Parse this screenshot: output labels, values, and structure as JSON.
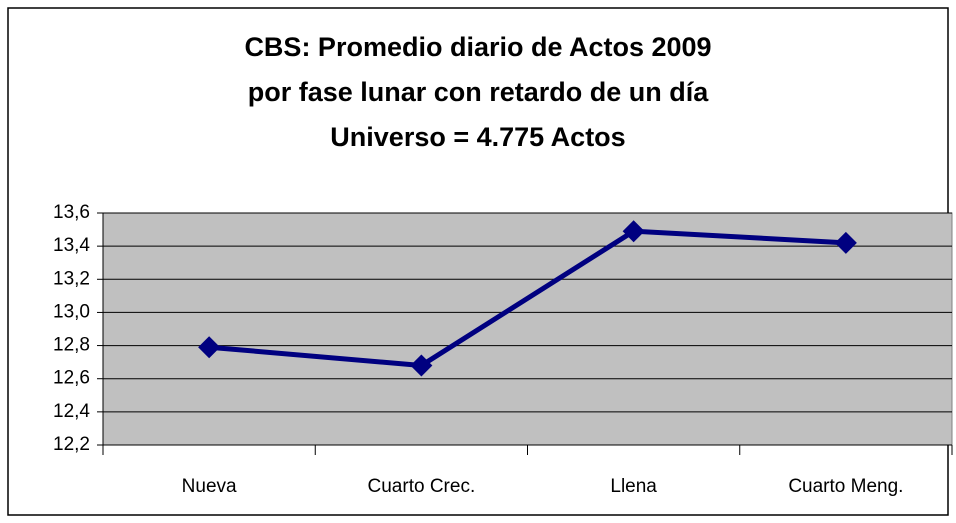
{
  "chart_data": {
    "type": "line",
    "title": [
      "CBS: Promedio diario de Actos 2009",
      "por fase lunar con retardo de un día",
      "Universo = 4.775 Actos"
    ],
    "categories": [
      "Nueva",
      "Cuarto Crec.",
      "Llena",
      "Cuarto Meng."
    ],
    "series": [
      {
        "name": "Promedio",
        "color": "#000080",
        "values": [
          12.79,
          12.68,
          13.49,
          13.42
        ]
      }
    ],
    "ylim": [
      12.2,
      13.6
    ],
    "yticks": [
      {
        "value": 12.2,
        "label": "12,2"
      },
      {
        "value": 12.4,
        "label": "12,4"
      },
      {
        "value": 12.6,
        "label": "12,6"
      },
      {
        "value": 12.8,
        "label": "12,8"
      },
      {
        "value": 13.0,
        "label": "13,0"
      },
      {
        "value": 13.2,
        "label": "13,2"
      },
      {
        "value": 13.4,
        "label": "13,4"
      },
      {
        "value": 13.6,
        "label": "13,6"
      }
    ],
    "grid": true
  }
}
